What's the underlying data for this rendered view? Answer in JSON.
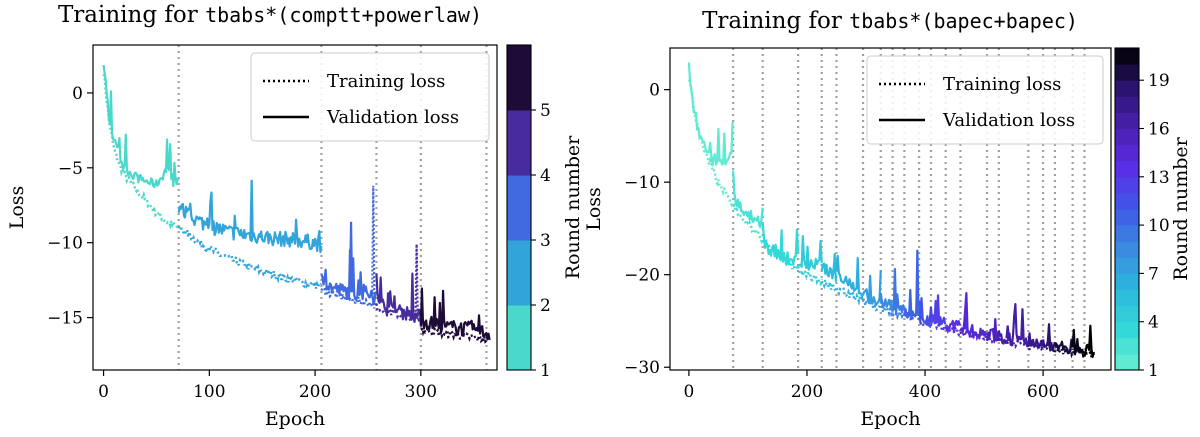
{
  "chart_data": [
    {
      "type": "line",
      "title_prefix": "Training for ",
      "title_model": "tbabs*(comptt+powerlaw)",
      "xlabel": "Epoch",
      "ylabel": "Loss",
      "xlim": [
        -10,
        372
      ],
      "ylim": [
        -18.5,
        3.2
      ],
      "x_ticks": [
        0,
        100,
        200,
        300
      ],
      "y_ticks": [
        0,
        -5,
        -10,
        -15
      ],
      "x_tick_labels": [
        "0",
        "100",
        "200",
        "300"
      ],
      "y_tick_labels": [
        "0",
        "−5",
        "−10",
        "−15"
      ],
      "legend": {
        "training": "Training loss",
        "validation": "Validation loss",
        "position": "top-right"
      },
      "colorbar": {
        "label": "Round number",
        "range": [
          1,
          6
        ],
        "ticks": [
          1,
          2,
          3,
          4,
          5
        ],
        "tick_labels": [
          "1",
          "2",
          "3",
          "4",
          "5"
        ],
        "colors": [
          "#5ef0c0",
          "#2db3d8",
          "#4169e0",
          "#4a1c8c",
          "#000000"
        ]
      },
      "round_boundaries": [
        71,
        206,
        258,
        300,
        362
      ],
      "rounds": [
        {
          "round": 1,
          "epochs": [
            0,
            71
          ],
          "validation": [
            [
              0,
              1.6
            ],
            [
              2,
              0.8
            ],
            [
              5,
              -1.5
            ],
            [
              10,
              -3.2
            ],
            [
              15,
              -4.3
            ],
            [
              20,
              -5.0
            ],
            [
              30,
              -5.6
            ],
            [
              40,
              -5.9
            ],
            [
              50,
              -6.1
            ],
            [
              56,
              -5.5
            ],
            [
              60,
              -5.0
            ],
            [
              65,
              -6.0
            ],
            [
              71,
              -5.8
            ]
          ],
          "training": [
            [
              0,
              1.5
            ],
            [
              5,
              -1.8
            ],
            [
              10,
              -3.8
            ],
            [
              15,
              -4.8
            ],
            [
              20,
              -5.5
            ],
            [
              30,
              -6.4
            ],
            [
              40,
              -7.2
            ],
            [
              50,
              -8.0
            ],
            [
              60,
              -8.6
            ],
            [
              71,
              -9.0
            ]
          ]
        },
        {
          "round": 2,
          "epochs": [
            71,
            206
          ],
          "validation": [
            [
              72,
              -7.6
            ],
            [
              80,
              -8.2
            ],
            [
              100,
              -8.9
            ],
            [
              120,
              -9.3
            ],
            [
              140,
              -9.5
            ],
            [
              160,
              -9.7
            ],
            [
              180,
              -9.8
            ],
            [
              200,
              -10.0
            ],
            [
              206,
              -10.2
            ]
          ],
          "training": [
            [
              72,
              -9.0
            ],
            [
              90,
              -10.0
            ],
            [
              110,
              -10.8
            ],
            [
              130,
              -11.4
            ],
            [
              150,
              -11.9
            ],
            [
              170,
              -12.3
            ],
            [
              190,
              -12.7
            ],
            [
              206,
              -12.9
            ]
          ]
        },
        {
          "round": 3,
          "epochs": [
            206,
            258
          ],
          "validation": [
            [
              207,
              -12.5
            ],
            [
              215,
              -13.0
            ],
            [
              225,
              -13.2
            ],
            [
              240,
              -13.4
            ],
            [
              250,
              -13.4
            ],
            [
              258,
              -13.6
            ]
          ],
          "training": [
            [
              207,
              -13.2
            ],
            [
              220,
              -13.5
            ],
            [
              235,
              -13.8
            ],
            [
              250,
              -14.0
            ],
            [
              258,
              -14.2
            ]
          ]
        },
        {
          "round": 4,
          "epochs": [
            258,
            300
          ],
          "validation": [
            [
              259,
              -13.4
            ],
            [
              265,
              -14.3
            ],
            [
              275,
              -14.6
            ],
            [
              290,
              -14.7
            ],
            [
              300,
              -15.0
            ]
          ],
          "training": [
            [
              259,
              -14.3
            ],
            [
              270,
              -14.6
            ],
            [
              285,
              -14.9
            ],
            [
              300,
              -15.1
            ]
          ]
        },
        {
          "round": 5,
          "epochs": [
            300,
            365
          ],
          "validation": [
            [
              301,
              -15.2
            ],
            [
              310,
              -15.4
            ],
            [
              320,
              -15.6
            ],
            [
              335,
              -15.7
            ],
            [
              350,
              -15.8
            ],
            [
              365,
              -16.1
            ]
          ],
          "training": [
            [
              301,
              -15.8
            ],
            [
              315,
              -16.0
            ],
            [
              330,
              -16.1
            ],
            [
              345,
              -16.3
            ],
            [
              365,
              -16.5
            ]
          ]
        }
      ],
      "spikes": [
        [
          60,
          -4.5
        ],
        [
          140,
          -5.8
        ],
        [
          255,
          -6.2
        ],
        [
          296,
          -10.1
        ],
        [
          234,
          -8.6
        ]
      ]
    },
    {
      "type": "line",
      "title_prefix": "Training for ",
      "title_model": "tbabs*(bapec+bapec)",
      "xlabel": "Epoch",
      "ylabel": "Loss",
      "xlim": [
        -32,
        715
      ],
      "ylim": [
        -30.3,
        4.5
      ],
      "x_ticks": [
        0,
        200,
        400,
        600
      ],
      "y_ticks": [
        0,
        -10,
        -20,
        -30
      ],
      "x_tick_labels": [
        "0",
        "200",
        "400",
        "600"
      ],
      "y_tick_labels": [
        "0",
        "−10",
        "−20",
        "−30"
      ],
      "legend": {
        "training": "Training loss",
        "validation": "Validation loss",
        "position": "top-right"
      },
      "colorbar": {
        "label": "Round number",
        "range": [
          1,
          21
        ],
        "ticks": [
          1,
          4,
          7,
          10,
          13,
          16,
          19
        ],
        "tick_labels": [
          "1",
          "4",
          "7",
          "10",
          "13",
          "16",
          "19"
        ],
        "colors": [
          "#6af0d0",
          "#35d8d8",
          "#2ab8dc",
          "#3a8ce0",
          "#3f5ae6",
          "#5a2fe8",
          "#4a20b0",
          "#2a1470",
          "#000000"
        ]
      },
      "round_boundaries": [
        75,
        125,
        185,
        225,
        250,
        295,
        325,
        345,
        365,
        390,
        410,
        435,
        460,
        505,
        525,
        575,
        600,
        620,
        650,
        670
      ],
      "rounds_validation": [
        [
          0,
          2.4
        ],
        [
          8,
          -2.0
        ],
        [
          20,
          -5.5
        ],
        [
          40,
          -7.5
        ],
        [
          60,
          -8.0
        ],
        [
          74,
          -6.8
        ],
        [
          76,
          -11.5
        ],
        [
          100,
          -13.5
        ],
        [
          125,
          -14.5
        ],
        [
          130,
          -17.0
        ],
        [
          160,
          -18.2
        ],
        [
          185,
          -18.5
        ],
        [
          230,
          -19.2
        ],
        [
          290,
          -22.0
        ],
        [
          350,
          -23.5
        ],
        [
          400,
          -24.8
        ],
        [
          450,
          -25.6
        ],
        [
          500,
          -26.4
        ],
        [
          550,
          -27.0
        ],
        [
          600,
          -27.6
        ],
        [
          650,
          -28.1
        ],
        [
          685,
          -28.3
        ]
      ],
      "training": [
        [
          0,
          1.5
        ],
        [
          10,
          -3.0
        ],
        [
          25,
          -6.5
        ],
        [
          50,
          -10.0
        ],
        [
          75,
          -12.5
        ],
        [
          100,
          -14.5
        ],
        [
          125,
          -16.3
        ],
        [
          150,
          -18.0
        ],
        [
          200,
          -20.0
        ],
        [
          250,
          -21.5
        ],
        [
          300,
          -23.0
        ],
        [
          350,
          -24.2
        ],
        [
          400,
          -25.2
        ],
        [
          450,
          -26.0
        ],
        [
          500,
          -26.8
        ],
        [
          550,
          -27.4
        ],
        [
          600,
          -27.9
        ],
        [
          650,
          -28.3
        ],
        [
          685,
          -28.6
        ]
      ],
      "spikes": [
        [
          387,
          -17.3
        ],
        [
          325,
          -22.0
        ],
        [
          410,
          -23.5
        ],
        [
          470,
          -24.5
        ],
        [
          540,
          -25.5
        ],
        [
          610,
          -26.0
        ]
      ]
    }
  ]
}
